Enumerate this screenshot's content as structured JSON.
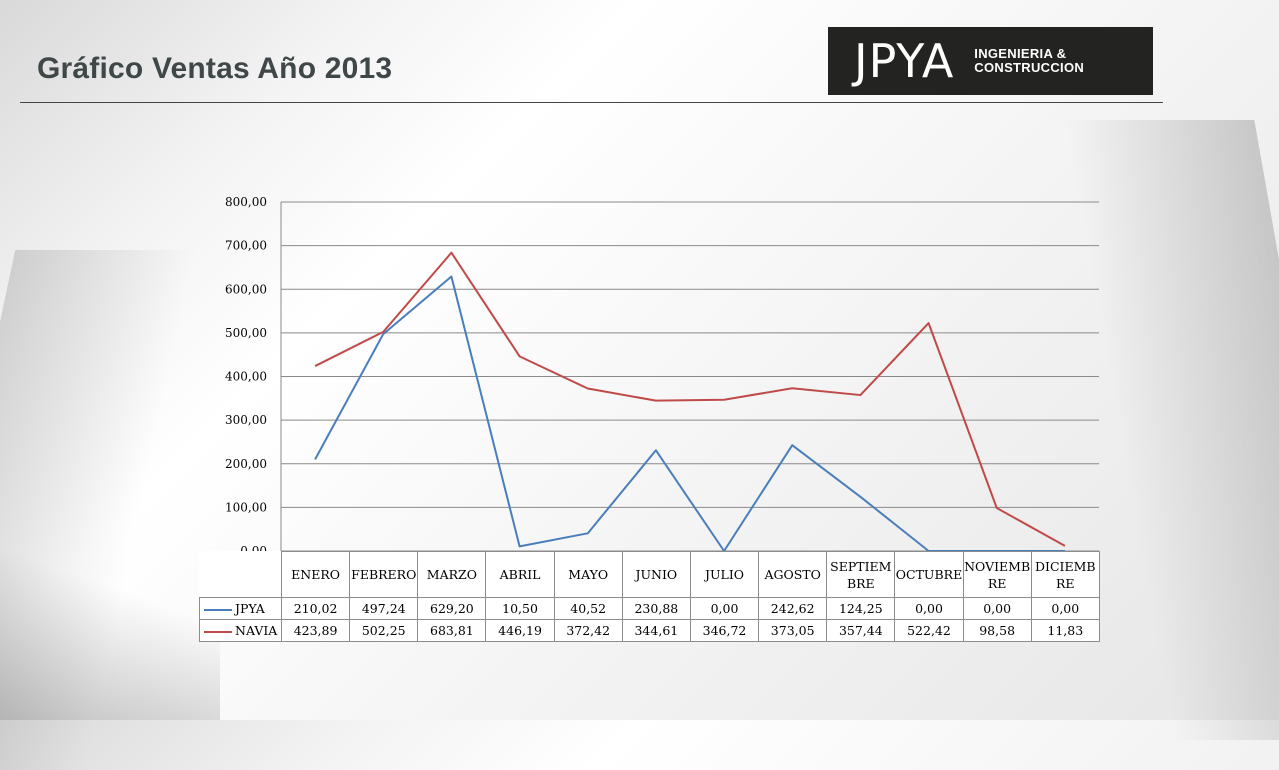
{
  "slide": {
    "title": "Gráfico Ventas Año 2013"
  },
  "logo": {
    "mark": "JPYA",
    "line1": "INGENIERIA &",
    "line2": "CONSTRUCCION",
    "background_color": "#232321"
  },
  "chart_data": {
    "type": "line",
    "title": "",
    "xlabel": "",
    "ylabel": "",
    "ylim": [
      0,
      800
    ],
    "yticks": [
      "0,00",
      "100,00",
      "200,00",
      "300,00",
      "400,00",
      "500,00",
      "600,00",
      "700,00",
      "800,00"
    ],
    "grid": true,
    "legend": "data-table",
    "categories": [
      "ENERO",
      "FEBRERO",
      "MARZO",
      "ABRIL",
      "MAYO",
      "JUNIO",
      "JULIO",
      "AGOSTO",
      "SEPTIEMBRE",
      "OCTUBRE",
      "NOVIEMBRE",
      "DICIEMBRE"
    ],
    "series": [
      {
        "name": "JPYA",
        "color": "#4a7ebb",
        "values": [
          210.02,
          497.24,
          629.2,
          10.5,
          40.52,
          230.88,
          0.0,
          242.62,
          124.25,
          0.0,
          0.0,
          0.0
        ],
        "labels": [
          "210,02",
          "497,24",
          "629,20",
          "10,50",
          "40,52",
          "230,88",
          "0,00",
          "242,62",
          "124,25",
          "0,00",
          "0,00",
          "0,00"
        ]
      },
      {
        "name": "NAVIA",
        "color": "#be4b48",
        "values": [
          423.89,
          502.25,
          683.81,
          446.19,
          372.42,
          344.61,
          346.72,
          373.05,
          357.44,
          522.42,
          98.58,
          11.83
        ],
        "labels": [
          "423,89",
          "502,25",
          "683,81",
          "446,19",
          "372,42",
          "344,61",
          "346,72",
          "373,05",
          "357,44",
          "522,42",
          "98,58",
          "11,83"
        ]
      }
    ]
  }
}
